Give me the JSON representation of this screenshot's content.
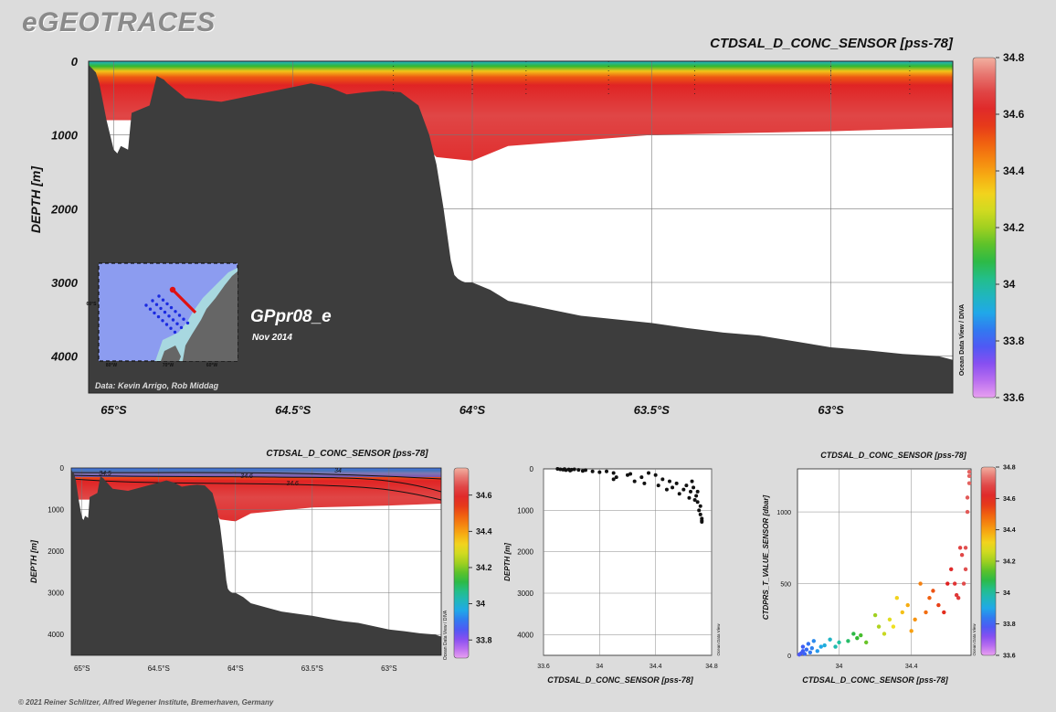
{
  "brand": "eGEOTRACES",
  "footer": "© 2021 Reiner Schlitzer, Alfred Wegener Institute, Bremerhaven, Germany",
  "main_panel": {
    "title": "CTDSAL_D_CONC_SENSOR [pss-78]",
    "ylabel": "DEPTH [m]",
    "colorbar_credit": "Ocean Data View / DIVA",
    "section_name": "GPpr08_e",
    "date": "Nov 2014",
    "credit": "Data: Kevin Arrigo, Rob Middag",
    "inset_lon_labels": [
      "80°W",
      "70°W",
      "60°W"
    ],
    "inset_lat_label": "60°S"
  },
  "colors": {
    "land": "#3d3d3d",
    "colormap": [
      "#e8a0f0",
      "#9a4cf0",
      "#3c5cf5",
      "#20a8e8",
      "#20c0a0",
      "#30b830",
      "#a0d020",
      "#f0e020",
      "#f8a010",
      "#f06010",
      "#e02020",
      "#e05050",
      "#f2b0a0"
    ]
  },
  "chart_data": [
    {
      "type": "heatmap",
      "title": "CTDSAL_D_CONC_SENSOR [pss-78]",
      "xlabel": "",
      "ylabel": "DEPTH [m]",
      "x_ticks": [
        "65°S",
        "64.5°S",
        "64°S",
        "63.5°S",
        "63°S"
      ],
      "x_tick_values": [
        -65,
        -64.5,
        -64,
        -63.5,
        -63
      ],
      "xlim": [
        -65.07,
        -62.66
      ],
      "y_ticks": [
        0,
        1000,
        2000,
        3000,
        4000
      ],
      "ylim": [
        0,
        4500
      ],
      "colorbar_ticks": [
        33.6,
        33.8,
        34,
        34.2,
        34.4,
        34.6,
        34.8
      ],
      "colorbar_labels": [
        "33.6",
        "33.8",
        "34",
        "34.2",
        "34.4",
        "34.6",
        "34.8"
      ],
      "colorbar_range": [
        33.6,
        34.8
      ],
      "grid": true,
      "bottom_profile": {
        "lat": [
          -65.07,
          -65.05,
          -65.04,
          -65.02,
          -65.01,
          -65.0,
          -64.99,
          -64.98,
          -64.96,
          -64.95,
          -64.9,
          -64.88,
          -64.86,
          -64.85,
          -64.8,
          -64.7,
          -64.6,
          -64.5,
          -64.45,
          -64.4,
          -64.35,
          -64.3,
          -64.25,
          -64.2,
          -64.15,
          -64.12,
          -64.1,
          -64.08,
          -64.06,
          -64.05,
          -64.04,
          -64.03,
          -64.02,
          -64.0,
          -63.95,
          -63.9,
          -63.8,
          -63.7,
          -63.6,
          -63.5,
          -63.4,
          -63.3,
          -63.2,
          -63.1,
          -63.0,
          -62.9,
          -62.8,
          -62.7,
          -62.66
        ],
        "depth": [
          50,
          150,
          300,
          800,
          1000,
          1200,
          1250,
          1150,
          1200,
          700,
          600,
          200,
          250,
          300,
          500,
          550,
          450,
          350,
          300,
          350,
          450,
          420,
          400,
          420,
          600,
          1000,
          1400,
          2000,
          2700,
          2900,
          2950,
          2980,
          3000,
          3000,
          3100,
          3250,
          3350,
          3450,
          3500,
          3550,
          3620,
          3680,
          3720,
          3800,
          3880,
          3920,
          3970,
          4000,
          4050
        ]
      },
      "data_extent_depth": {
        "lat": [
          -65.07,
          -64.5,
          -64.2,
          -64.1,
          -64.0,
          -63.9,
          -63.5,
          -63.0,
          -62.66
        ],
        "depth": [
          800,
          800,
          800,
          1300,
          1350,
          1150,
          1000,
          950,
          900
        ]
      }
    },
    {
      "type": "heatmap",
      "title": "CTDSAL_D_CONC_SENSOR [pss-78]",
      "xlabel": "",
      "ylabel": "DEPTH [m]",
      "x_ticks": [
        "65°S",
        "64.5°S",
        "64°S",
        "63.5°S",
        "63°S"
      ],
      "y_ticks": [
        0,
        1000,
        2000,
        3000,
        4000
      ],
      "ylim": [
        0,
        4500
      ],
      "colorbar_ticks": [
        33.8,
        34,
        34.2,
        34.4,
        34.6
      ],
      "colorbar_labels": [
        "33.8",
        "34",
        "34.2",
        "34.4",
        "34.6"
      ],
      "colorbar_range": [
        33.7,
        34.75
      ],
      "contour_labels": [
        "34.5",
        "34.6",
        "34.5",
        "34.6",
        "34"
      ],
      "colorbar_credit": "Ocean Data View / DIVA"
    },
    {
      "type": "scatter",
      "title": "",
      "xlabel": "CTDSAL_D_CONC_SENSOR [pss-78]",
      "ylabel": "DEPTH [m]",
      "xlim": [
        33.6,
        34.8
      ],
      "ylim": [
        4500,
        0
      ],
      "x_ticks": [
        33.6,
        34,
        34.4,
        34.8
      ],
      "x_tick_labels": [
        "33.6",
        "34",
        "34.4",
        "34.8"
      ],
      "y_ticks": [
        0,
        1000,
        2000,
        3000,
        4000
      ],
      "credit": "Ocean Data View",
      "x": [
        33.7,
        33.72,
        33.74,
        33.75,
        33.76,
        33.78,
        33.79,
        33.8,
        33.82,
        33.85,
        33.88,
        33.9,
        33.95,
        34.0,
        34.05,
        34.1,
        34.1,
        34.12,
        34.2,
        34.22,
        34.25,
        34.3,
        34.32,
        34.35,
        34.4,
        34.42,
        34.45,
        34.48,
        34.5,
        34.52,
        34.55,
        34.57,
        34.6,
        34.62,
        34.64,
        34.65,
        34.66,
        34.67,
        34.68,
        34.69,
        34.7,
        34.7,
        34.71,
        34.72,
        34.72,
        34.73,
        34.73,
        34.73
      ],
      "y": [
        0,
        10,
        20,
        5,
        30,
        15,
        40,
        20,
        10,
        25,
        50,
        30,
        60,
        80,
        60,
        100,
        250,
        200,
        150,
        120,
        300,
        200,
        350,
        100,
        150,
        400,
        250,
        500,
        300,
        450,
        350,
        600,
        500,
        400,
        700,
        550,
        300,
        450,
        750,
        650,
        800,
        550,
        1000,
        900,
        1100,
        1200,
        1250,
        1280
      ]
    },
    {
      "type": "scatter",
      "title": "CTDSAL_D_CONC_SENSOR [pss-78]",
      "xlabel": "CTDSAL_D_CONC_SENSOR [pss-78]",
      "ylabel": "CTDPRS_T_VALUE_SENSOR [dbar]",
      "xlim": [
        33.77,
        34.73
      ],
      "ylim": [
        0,
        1300
      ],
      "x_ticks": [
        34,
        34.4
      ],
      "x_tick_labels": [
        "34",
        "34.4"
      ],
      "y_ticks": [
        0,
        500,
        1000
      ],
      "y_tick_labels": [
        "0",
        "500",
        "1000"
      ],
      "colorbar_ticks": [
        33.6,
        33.8,
        34,
        34.2,
        34.4,
        34.6,
        34.8
      ],
      "colorbar_labels": [
        "33.6",
        "33.8",
        "34",
        "34.2",
        "34.4",
        "34.6",
        "34.8"
      ],
      "credit": "Ocean Data View",
      "x": [
        33.78,
        33.79,
        33.8,
        33.8,
        33.81,
        33.82,
        33.83,
        33.84,
        33.85,
        33.86,
        33.88,
        33.9,
        33.92,
        33.95,
        33.98,
        34.0,
        34.05,
        34.08,
        34.1,
        34.12,
        34.15,
        34.2,
        34.22,
        34.25,
        34.28,
        34.3,
        34.32,
        34.35,
        34.38,
        34.4,
        34.42,
        34.45,
        34.48,
        34.5,
        34.52,
        34.55,
        34.58,
        34.6,
        34.62,
        34.64,
        34.65,
        34.66,
        34.67,
        34.68,
        34.69,
        34.7,
        34.7,
        34.71,
        34.71,
        34.72,
        34.72,
        34.72
      ],
      "y": [
        5,
        15,
        30,
        60,
        10,
        40,
        80,
        20,
        50,
        100,
        30,
        60,
        70,
        110,
        60,
        90,
        100,
        150,
        120,
        140,
        90,
        280,
        200,
        150,
        250,
        200,
        400,
        300,
        350,
        170,
        250,
        500,
        300,
        400,
        450,
        350,
        300,
        500,
        600,
        500,
        420,
        400,
        750,
        700,
        500,
        600,
        750,
        1000,
        1100,
        1200,
        1250,
        1280
      ]
    }
  ]
}
